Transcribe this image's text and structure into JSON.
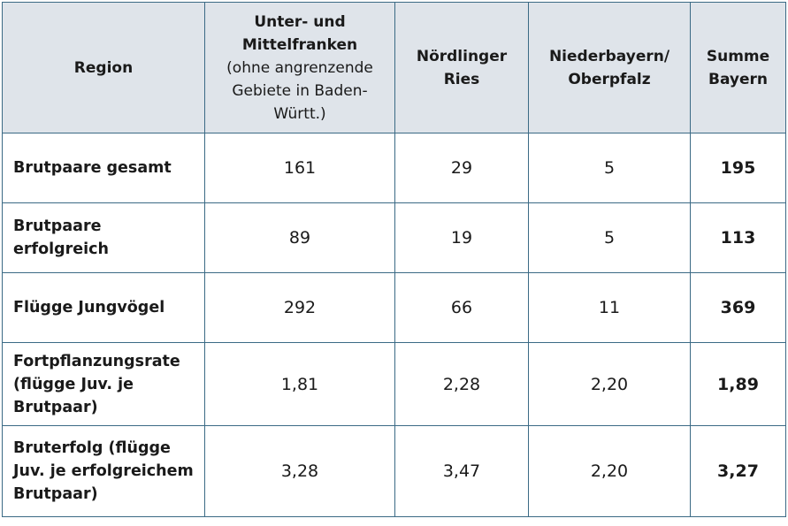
{
  "header": {
    "region": "Region",
    "col1_title": "Unter- und Mittelfranken",
    "col1_note": "(ohne angrenzende Gebiete in Baden-Württ.)",
    "col2": "Nördlinger Ries",
    "col3": "Niederbayern/ Oberpfalz",
    "col4": "Summe Bayern"
  },
  "rows": [
    {
      "label": "Brutpaare gesamt",
      "values": [
        "161",
        "29",
        "5",
        "195"
      ]
    },
    {
      "label": "Brutpaare erfolgreich",
      "values": [
        "89",
        "19",
        "5",
        "113"
      ]
    },
    {
      "label": "Flügge Jungvögel",
      "values": [
        "292",
        "66",
        "11",
        "369"
      ]
    },
    {
      "label": "Fortpflanzungsrate (flügge Juv. je Brutpaar)",
      "values": [
        "1,81",
        "2,28",
        "2,20",
        "1,89"
      ]
    },
    {
      "label": "Bruterfolg (flügge Juv. je erfolgreichem Brutpaar)",
      "values": [
        "3,28",
        "3,47",
        "2,20",
        "3,27"
      ]
    }
  ],
  "colors": {
    "header_bg": "#dfe4ea",
    "border": "#3b6a85"
  }
}
